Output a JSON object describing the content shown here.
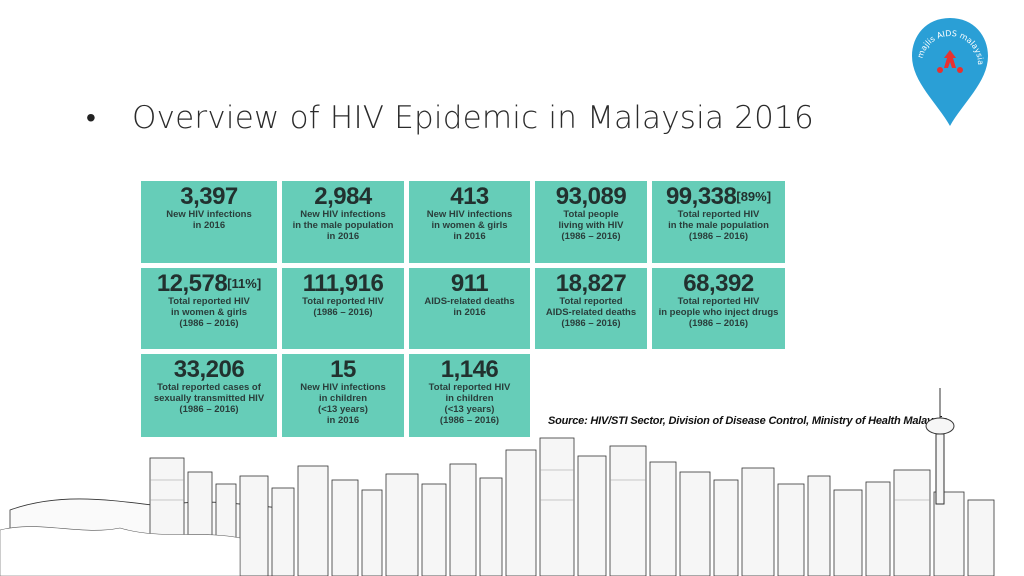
{
  "slide": {
    "bullet": "•",
    "title": "Overview of HIV Epidemic in Malaysia 2016",
    "logo_text": "majlis AIDS malaysia",
    "source": "Source: HIV/STI Sector, Division of Disease Control, Ministry of Health Malaysia",
    "tile_color": "#66cdb8",
    "logo_color": "#2a9fd6"
  },
  "tiles": [
    {
      "value": "3,397",
      "pct": "",
      "desc": "New HIV infections\nin 2016"
    },
    {
      "value": "2,984",
      "pct": "",
      "desc": "New HIV infections\nin the male population\nin 2016"
    },
    {
      "value": "413",
      "pct": "",
      "desc": "New HIV infections\nin women & girls\nin 2016"
    },
    {
      "value": "93,089",
      "pct": "",
      "desc": "Total people\nliving with HIV\n(1986 – 2016)"
    },
    {
      "value": "99,338",
      "pct": "[89%]",
      "desc": "Total reported HIV\nin the male population\n(1986 – 2016)"
    },
    {
      "value": "12,578",
      "pct": "[11%]",
      "desc": "Total reported HIV\nin women & girls\n(1986 – 2016)"
    },
    {
      "value": "111,916",
      "pct": "",
      "desc": "Total reported HIV\n(1986 – 2016)"
    },
    {
      "value": "911",
      "pct": "",
      "desc": "AIDS-related deaths\nin 2016"
    },
    {
      "value": "18,827",
      "pct": "",
      "desc": "Total reported\nAIDS-related deaths\n(1986 – 2016)"
    },
    {
      "value": "68,392",
      "pct": "",
      "desc": "Total reported HIV\nin people who inject drugs\n(1986 – 2016)"
    },
    {
      "value": "33,206",
      "pct": "",
      "desc": "Total reported cases of\nsexually transmitted HIV\n(1986 – 2016)"
    },
    {
      "value": "15",
      "pct": "",
      "desc": "New HIV infections\nin children\n(<13 years)\nin 2016"
    },
    {
      "value": "1,146",
      "pct": "",
      "desc": "Total reported HIV\nin children\n(<13 years)\n(1986 – 2016)"
    }
  ]
}
